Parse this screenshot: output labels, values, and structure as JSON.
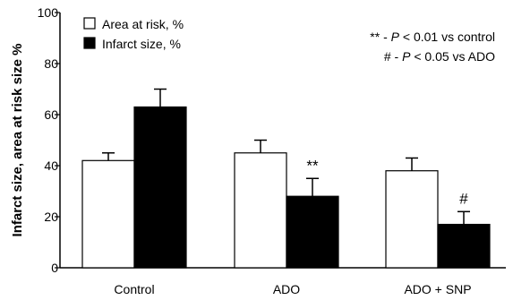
{
  "chart_data": {
    "type": "bar",
    "categories": [
      "Control",
      "ADO",
      "ADO + SNP"
    ],
    "series": [
      {
        "name": "Area at risk, %",
        "color": "#ffffff",
        "values": [
          42,
          45,
          38
        ],
        "errors": [
          3,
          5,
          5
        ]
      },
      {
        "name": "Infarct size, %",
        "color": "#000000",
        "values": [
          63,
          28,
          17
        ],
        "errors": [
          7,
          7,
          5
        ]
      }
    ],
    "ylabel": "Infarct size, area at risk size %",
    "ylim": [
      0,
      100
    ],
    "yticks": [
      0,
      20,
      40,
      60,
      80,
      100
    ],
    "legend_position": "top-left",
    "grid": false,
    "significance": [
      {
        "marker": "**",
        "text": " - P < 0.01 vs control"
      },
      {
        "marker": "#",
        "text": " - P < 0.05 vs ADO"
      }
    ],
    "bar_annotations": [
      {
        "category": 1,
        "series": 1,
        "text": "**"
      },
      {
        "category": 2,
        "series": 1,
        "text": "#"
      }
    ]
  }
}
